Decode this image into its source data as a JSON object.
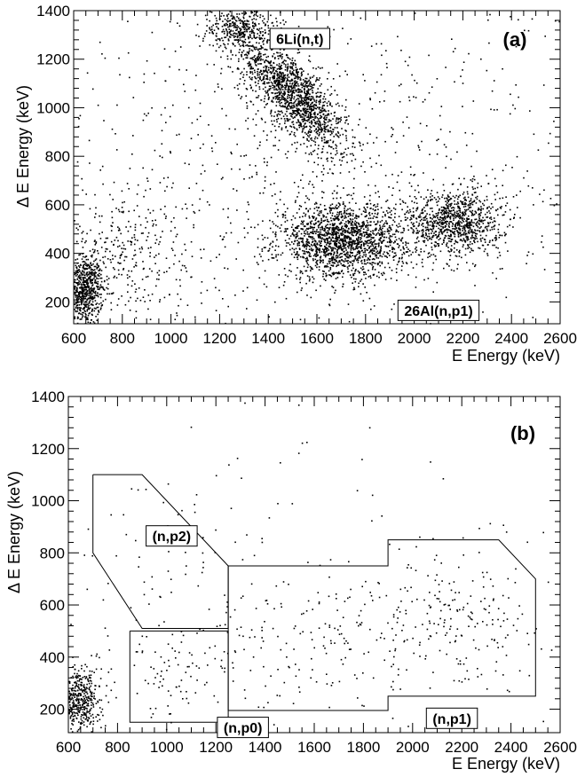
{
  "chart_data": [
    {
      "type": "scatter",
      "panel_label": "(a)",
      "xlabel": "E Energy (keV)",
      "ylabel": "Δ E Energy (keV)",
      "xlim": [
        600,
        2600
      ],
      "ylim": [
        110,
        1400
      ],
      "x_ticks": [
        600,
        800,
        1000,
        1200,
        1400,
        1600,
        1800,
        2000,
        2200,
        2400,
        2600
      ],
      "y_ticks": [
        200,
        400,
        600,
        800,
        1000,
        1200,
        1400
      ],
      "grid": false,
      "legend": "none",
      "clusters": [
        {
          "cx": 640,
          "cy": 250,
          "sx": 40,
          "sy": 70,
          "n": 700
        },
        {
          "cx": 1500,
          "cy": 1060,
          "sx": 110,
          "sy": 120,
          "n": 1500,
          "rho": -0.75
        },
        {
          "cx": 1280,
          "cy": 1330,
          "sx": 80,
          "sy": 45,
          "n": 350
        },
        {
          "cx": 1700,
          "cy": 450,
          "sx": 130,
          "sy": 75,
          "n": 1700
        },
        {
          "cx": 2160,
          "cy": 530,
          "sx": 100,
          "sy": 70,
          "n": 950
        },
        {
          "cx": 800,
          "cy": 400,
          "sx": 150,
          "sy": 120,
          "n": 300
        },
        {
          "cx": 1600,
          "cy": 750,
          "sx": 600,
          "sy": 350,
          "n": 900
        }
      ],
      "annotations": [
        {
          "text": "6Li(n,t)",
          "x": 1530,
          "y": 1285
        },
        {
          "text": "26Al(n,p1)",
          "x": 2100,
          "y": 165
        }
      ]
    },
    {
      "type": "scatter",
      "panel_label": "(b)",
      "xlabel": "E Energy (keV)",
      "ylabel": "Δ E Energy (keV)",
      "xlim": [
        600,
        2600
      ],
      "ylim": [
        110,
        1400
      ],
      "x_ticks": [
        600,
        800,
        1000,
        1200,
        1400,
        1600,
        1800,
        2000,
        2200,
        2400,
        2600
      ],
      "y_ticks": [
        200,
        400,
        600,
        800,
        1000,
        1200,
        1400
      ],
      "grid": false,
      "legend": "none",
      "clusters": [
        {
          "cx": 630,
          "cy": 240,
          "sx": 50,
          "sy": 60,
          "n": 550
        },
        {
          "cx": 1550,
          "cy": 470,
          "sx": 350,
          "sy": 150,
          "n": 200
        },
        {
          "cx": 2150,
          "cy": 560,
          "sx": 200,
          "sy": 130,
          "n": 200
        },
        {
          "cx": 1050,
          "cy": 320,
          "sx": 100,
          "sy": 100,
          "n": 60
        },
        {
          "cx": 950,
          "cy": 700,
          "sx": 200,
          "sy": 200,
          "n": 50
        },
        {
          "cx": 1600,
          "cy": 800,
          "sx": 550,
          "sy": 300,
          "n": 70
        }
      ],
      "regions": [
        {
          "name": "(n,p2)",
          "polygon": [
            [
              700,
              1100
            ],
            [
              900,
              1100
            ],
            [
              1250,
              750
            ],
            [
              1250,
              510
            ],
            [
              900,
              510
            ],
            [
              700,
              800
            ],
            [
              700,
              1100
            ]
          ]
        },
        {
          "name": "(n,p0)",
          "polygon": [
            [
              850,
              500
            ],
            [
              1250,
              500
            ],
            [
              1250,
              150
            ],
            [
              850,
              150
            ],
            [
              850,
              500
            ]
          ]
        },
        {
          "name": "(n,p1)",
          "polygon": [
            [
              1250,
              750
            ],
            [
              1900,
              750
            ],
            [
              1900,
              850
            ],
            [
              2350,
              850
            ],
            [
              2500,
              700
            ],
            [
              2500,
              250
            ],
            [
              1900,
              250
            ],
            [
              1900,
              195
            ],
            [
              1250,
              195
            ],
            [
              1250,
              750
            ]
          ]
        }
      ],
      "annotations": [
        {
          "text": "(n,p2)",
          "x": 1020,
          "y": 865
        },
        {
          "text": "(n,p0)",
          "x": 1310,
          "y": 130
        },
        {
          "text": "(n,p1)",
          "x": 2160,
          "y": 165
        }
      ]
    }
  ]
}
